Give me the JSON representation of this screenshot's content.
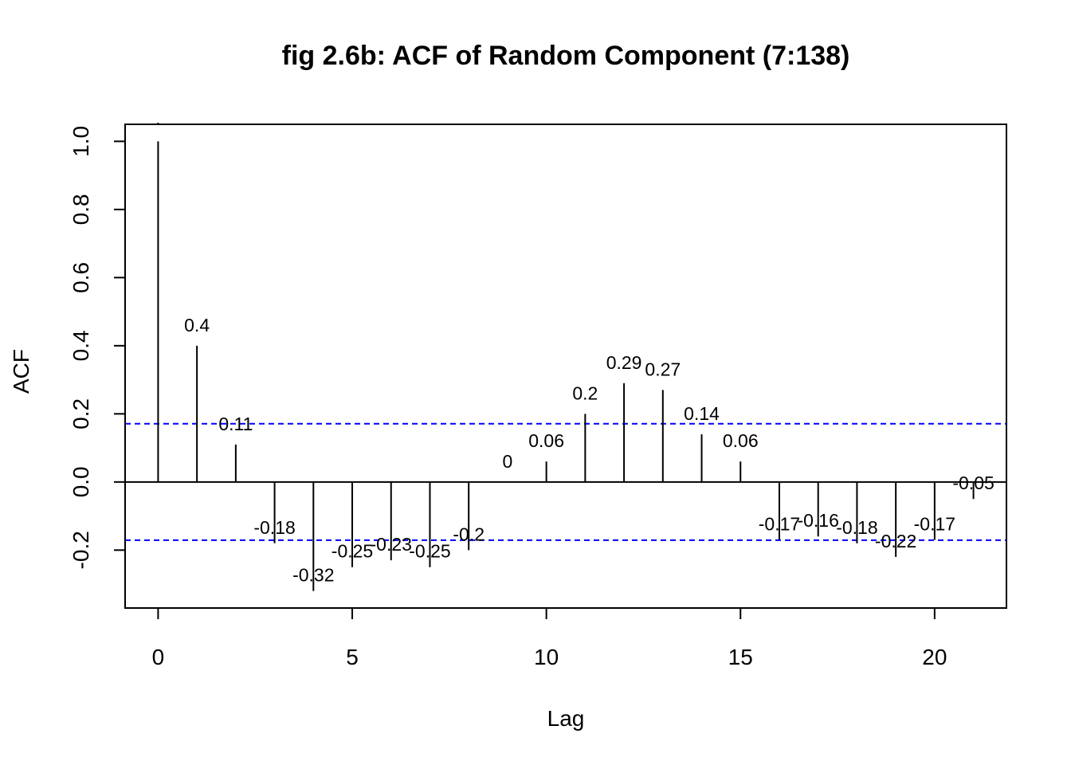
{
  "chart_data": {
    "type": "bar",
    "title": "fig 2.6b: ACF of Random Component (7:138)",
    "xlabel": "Lag",
    "ylabel": "ACF",
    "xlim": [
      -0.85,
      21.85
    ],
    "ylim": [
      -0.37,
      1.05
    ],
    "x_ticks": [
      0,
      5,
      10,
      15,
      20
    ],
    "y_ticks": [
      -0.2,
      0.0,
      0.2,
      0.4,
      0.6,
      0.8,
      1.0
    ],
    "y_tick_labels": [
      "-0.2",
      "0.0",
      "0.2",
      "0.4",
      "0.6",
      "0.8",
      "1.0"
    ],
    "confidence_bound": 0.171,
    "confidence_color": "#0000ff",
    "lags": [
      0,
      1,
      2,
      3,
      4,
      5,
      6,
      7,
      8,
      9,
      10,
      11,
      12,
      13,
      14,
      15,
      16,
      17,
      18,
      19,
      20,
      21
    ],
    "values": [
      1.0,
      0.4,
      0.11,
      -0.18,
      -0.32,
      -0.25,
      -0.23,
      -0.25,
      -0.2,
      0.0,
      0.06,
      0.2,
      0.29,
      0.27,
      0.14,
      0.06,
      -0.17,
      -0.16,
      -0.18,
      -0.22,
      -0.17,
      -0.05
    ],
    "labels": [
      "",
      "0.4",
      "0.11",
      "-0.18",
      "-0.32",
      "-0.25",
      "-0.23",
      "-0.25",
      "-0.2",
      "0",
      "0.06",
      "0.2",
      "0.29",
      "0.27",
      "0.14",
      "0.06",
      "-0.17",
      "-0.16",
      "-0.18",
      "-0.22",
      "-0.17",
      "-0.05"
    ],
    "grid": false,
    "legend": "none"
  }
}
